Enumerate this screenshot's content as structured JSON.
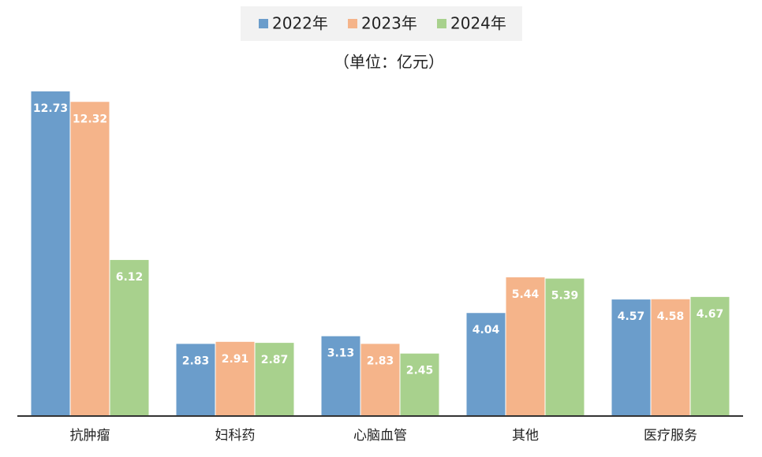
{
  "chart_data": {
    "type": "bar",
    "subtitle": "（单位：亿元）",
    "categories": [
      "抗肿瘤",
      "妇科药",
      "心脑血管",
      "其他",
      "医疗服务"
    ],
    "series": [
      {
        "name": "2022年",
        "color": "#6b9dcb",
        "values": [
          12.73,
          2.83,
          3.13,
          4.04,
          4.57
        ]
      },
      {
        "name": "2023年",
        "color": "#f5b48a",
        "values": [
          12.32,
          2.91,
          2.83,
          5.44,
          4.58
        ]
      },
      {
        "name": "2024年",
        "color": "#a8d18d",
        "values": [
          6.12,
          2.87,
          2.45,
          5.39,
          4.67
        ]
      }
    ],
    "legend": "top"
  }
}
